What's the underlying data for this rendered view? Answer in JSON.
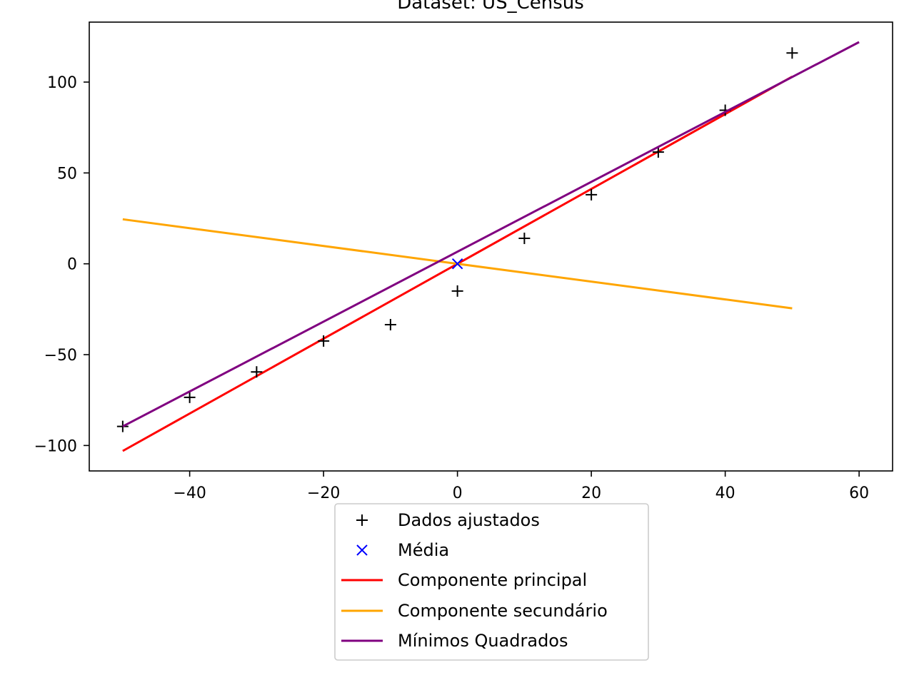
{
  "chart_data": {
    "type": "line",
    "title": "Dataset: US_Census",
    "xlabel": "",
    "ylabel": "",
    "xlim": [
      -55,
      65
    ],
    "ylim": [
      -114,
      133
    ],
    "x_ticks": [
      -40,
      -20,
      0,
      20,
      40,
      60
    ],
    "x_tick_labels": [
      "−40",
      "−20",
      "0",
      "20",
      "40",
      "60"
    ],
    "y_ticks": [
      -100,
      -50,
      0,
      50,
      100
    ],
    "y_tick_labels": [
      "−100",
      "−50",
      "0",
      "50",
      "100"
    ],
    "grid": false,
    "legend_position": "below-center",
    "series": [
      {
        "name": "Dados ajustados",
        "kind": "scatter",
        "marker": "plus",
        "color": "#000000",
        "x": [
          -50,
          -40,
          -30,
          -20,
          -10,
          0,
          10,
          20,
          30,
          40,
          50
        ],
        "y": [
          -89.5,
          -73.5,
          -59.5,
          -42.5,
          -33.5,
          -15,
          14,
          38,
          61.5,
          84.5,
          116
        ]
      },
      {
        "name": "Média",
        "kind": "scatter",
        "marker": "x",
        "color": "#0000ff",
        "x": [
          0
        ],
        "y": [
          0
        ]
      },
      {
        "name": "Componente principal",
        "kind": "line",
        "color": "#ff0000",
        "x": [
          -50,
          50
        ],
        "y": [
          -103,
          103
        ]
      },
      {
        "name": "Componente secundário",
        "kind": "line",
        "color": "#ffa500",
        "x": [
          -50,
          50
        ],
        "y": [
          24.5,
          -24.5
        ]
      },
      {
        "name": "Mínimos Quadrados",
        "kind": "line",
        "color": "#800080",
        "x": [
          -50,
          60
        ],
        "y": [
          -89.5,
          122
        ]
      }
    ]
  }
}
